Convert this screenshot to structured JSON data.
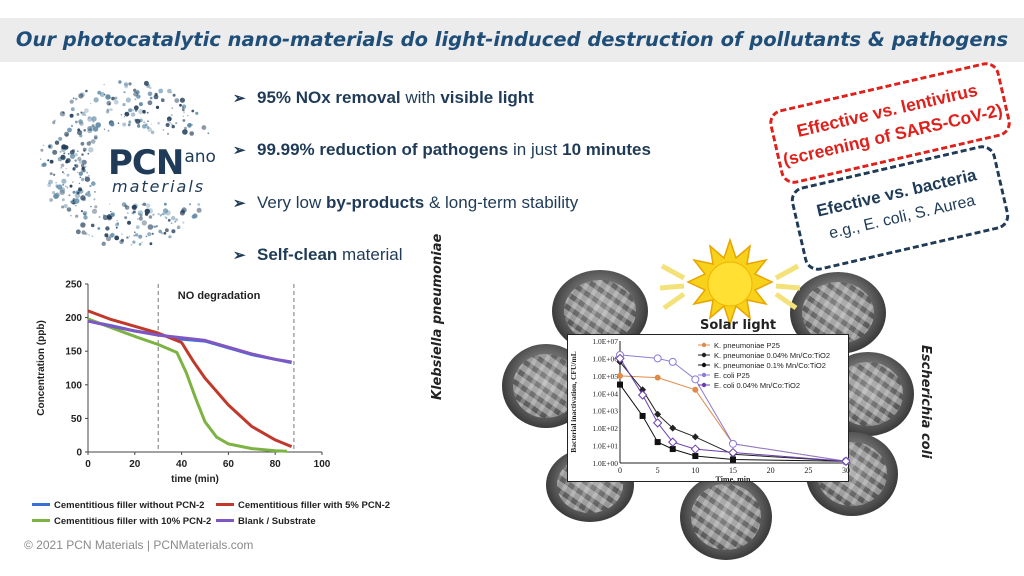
{
  "header": {
    "title": "Our photocatalytic nano-materials do light-induced destruction of pollutants & pathogens"
  },
  "logo": {
    "main": "PCN",
    "superscript": "ano",
    "sub": "materials"
  },
  "bullets": [
    {
      "bold1": "95% NOx removal",
      "plain1": " with ",
      "bold2": "visible light",
      "plain2": ""
    },
    {
      "bold1": "99.99% reduction of pathogens",
      "plain1": " in just ",
      "bold2": "10 minutes",
      "plain2": ""
    },
    {
      "bold1": "",
      "plain1": "Very low ",
      "bold2": "by-products",
      "plain2": " & long-term stability"
    },
    {
      "bold1": "Self-clean",
      "plain1": " material",
      "bold2": "",
      "plain2": ""
    }
  ],
  "badges": {
    "red_line1": "Effective vs. lentivirus",
    "red_line2": "(screening of SARS-CoV-2)",
    "blue_line1": "Efective vs. bacteria",
    "blue_line2": "e.g., E. coli, S. Aurea"
  },
  "colors": {
    "title": "#1f4e79",
    "badge_red": "#e0201b",
    "badge_blue": "#1f3b57"
  },
  "chart_data": [
    {
      "type": "line",
      "annotation": "NO degradation",
      "xlabel": "time (min)",
      "ylabel": "Concentration (ppb)",
      "xlim": [
        0,
        100
      ],
      "ylim": [
        0,
        250
      ],
      "xticks": [
        0,
        20,
        40,
        60,
        80,
        100
      ],
      "yticks": [
        0,
        50,
        100,
        150,
        200,
        250
      ],
      "grid": false,
      "dashed_lines_at_x": [
        30,
        88
      ],
      "series": [
        {
          "name": "Cementitious filler without PCN-2",
          "color": "#3a6fd8",
          "x": [
            0,
            10,
            20,
            30,
            40,
            50,
            60,
            70,
            80,
            87
          ],
          "y": [
            195,
            188,
            180,
            175,
            168,
            165,
            155,
            145,
            138,
            133
          ]
        },
        {
          "name": "Cementitious filler with 5% PCN-2",
          "color": "#c0392b",
          "x": [
            0,
            10,
            20,
            30,
            40,
            45,
            50,
            60,
            70,
            80,
            87
          ],
          "y": [
            210,
            197,
            187,
            177,
            163,
            135,
            110,
            70,
            38,
            18,
            8
          ]
        },
        {
          "name": "Cementitious filler with 10% PCN-2",
          "color": "#7cb342",
          "x": [
            0,
            10,
            20,
            30,
            38,
            42,
            46,
            50,
            55,
            60,
            70,
            80,
            85
          ],
          "y": [
            198,
            185,
            172,
            160,
            148,
            118,
            80,
            45,
            22,
            12,
            5,
            2,
            1
          ]
        },
        {
          "name": "Blank / Substrate",
          "color": "#7e57c2",
          "x": [
            0,
            10,
            20,
            30,
            40,
            50,
            60,
            70,
            80,
            87
          ],
          "y": [
            195,
            187,
            180,
            174,
            170,
            166,
            156,
            146,
            138,
            134
          ]
        }
      ]
    },
    {
      "type": "line",
      "xlabel": "Time, min",
      "ylabel": "Bacterial inactivation, CFU/mL",
      "xlim": [
        0,
        30
      ],
      "ylim_log10": [
        0,
        7
      ],
      "xticks": [
        0,
        5,
        10,
        15,
        20,
        25,
        30
      ],
      "yticks": [
        "1.0E+00",
        "1.0E+01",
        "1.0E+02",
        "1.0E+03",
        "1.0E+04",
        "1.0E+05",
        "1.0E+06",
        "1.0E+07"
      ],
      "series": [
        {
          "name": "K. pneumoniae P25",
          "color": "#e08a4a",
          "x": [
            0,
            5,
            10,
            15,
            30
          ],
          "y_log10": [
            5.0,
            4.9,
            4.2,
            1.1,
            0.1
          ]
        },
        {
          "name": "K. pneumoniae 0.04% Mn/Co:TiO2",
          "color": "#222222",
          "x": [
            0,
            3,
            5,
            7,
            10,
            15,
            30
          ],
          "y_log10": [
            5.8,
            4.2,
            2.8,
            2.0,
            1.5,
            0.5,
            0.1
          ]
        },
        {
          "name": "K. pneumoniae 0.1% Mn/Co:TiO2",
          "color": "#111111",
          "x": [
            0,
            3,
            5,
            7,
            10,
            15,
            30
          ],
          "y_log10": [
            4.5,
            2.7,
            1.2,
            0.8,
            0.4,
            0.2,
            0.1
          ]
        },
        {
          "name": "E. coli P25",
          "color": "#8d7bd6",
          "x": [
            0,
            5,
            7,
            10,
            15,
            30
          ],
          "y_log10": [
            6.2,
            6.0,
            5.8,
            4.8,
            1.1,
            0.1
          ]
        },
        {
          "name": "E. coli 0.04% Mn/Co:TiO2",
          "color": "#6a3fb0",
          "x": [
            0,
            3,
            5,
            7,
            10,
            15,
            30
          ],
          "y_log10": [
            6.0,
            3.9,
            2.3,
            1.2,
            0.8,
            0.6,
            0.1
          ]
        }
      ]
    }
  ],
  "figure": {
    "solar_label": "Solar light",
    "left_species": "Klebsiella pneumoniae",
    "right_species": "Escherichia coli"
  },
  "footer": {
    "text": "© 2021 PCN Materials  |  PCNMaterials.com"
  }
}
